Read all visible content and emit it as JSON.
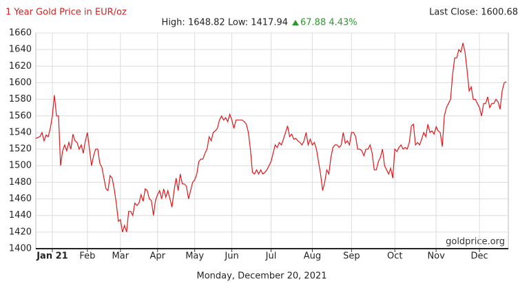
{
  "chart_data": {
    "type": "line",
    "title": "1 Year Gold Price in EUR/oz",
    "last_close": "Last Close: 1600.68",
    "stats": "High: 1648.82 Low: 1417.94",
    "change": "67.88 4.43%",
    "watermark": "goldprice.org",
    "date": "Monday, December 20, 2021",
    "color": "#e0161b",
    "grid": true,
    "xlim": [
      0,
      229
    ],
    "xticks": [
      {
        "value": 8,
        "label": "Jan 21"
      },
      {
        "value": 25,
        "label": "Feb"
      },
      {
        "value": 41,
        "label": "Mar"
      },
      {
        "value": 59,
        "label": "Apr"
      },
      {
        "value": 77,
        "label": "May"
      },
      {
        "value": 95,
        "label": "Jun"
      },
      {
        "value": 114,
        "label": "Jul"
      },
      {
        "value": 134,
        "label": "Aug"
      },
      {
        "value": 153,
        "label": "Sep"
      },
      {
        "value": 174,
        "label": "Oct"
      },
      {
        "value": 194,
        "label": "Nov"
      },
      {
        "value": 215,
        "label": "Dec"
      }
    ],
    "ylim": [
      1400,
      1660
    ],
    "yticks": [
      1400,
      1420,
      1440,
      1460,
      1480,
      1500,
      1520,
      1540,
      1560,
      1580,
      1600,
      1620,
      1640,
      1660
    ],
    "values": [
      1533,
      1534,
      1535,
      1540,
      1530,
      1537,
      1535,
      1545,
      1560,
      1585,
      1560,
      1560,
      1500,
      1518,
      1525,
      1518,
      1528,
      1520,
      1538,
      1530,
      1528,
      1520,
      1525,
      1515,
      1530,
      1540,
      1520,
      1500,
      1512,
      1520,
      1520,
      1503,
      1498,
      1485,
      1472,
      1470,
      1488,
      1485,
      1472,
      1455,
      1433,
      1435,
      1420,
      1428,
      1420,
      1445,
      1445,
      1440,
      1455,
      1452,
      1455,
      1465,
      1457,
      1472,
      1470,
      1460,
      1458,
      1440,
      1458,
      1465,
      1470,
      1460,
      1472,
      1462,
      1470,
      1460,
      1450,
      1470,
      1485,
      1470,
      1490,
      1478,
      1478,
      1475,
      1460,
      1470,
      1480,
      1483,
      1490,
      1505,
      1508,
      1508,
      1515,
      1520,
      1535,
      1530,
      1540,
      1542,
      1545,
      1555,
      1560,
      1555,
      1558,
      1553,
      1562,
      1555,
      1545,
      1555,
      1555,
      1555,
      1555,
      1553,
      1550,
      1540,
      1520,
      1492,
      1490,
      1495,
      1490,
      1495,
      1490,
      1492,
      1495,
      1500,
      1505,
      1515,
      1525,
      1522,
      1528,
      1525,
      1532,
      1540,
      1548,
      1535,
      1538,
      1532,
      1533,
      1530,
      1528,
      1525,
      1530,
      1540,
      1525,
      1532,
      1525,
      1528,
      1520,
      1505,
      1490,
      1470,
      1480,
      1495,
      1490,
      1510,
      1522,
      1525,
      1525,
      1522,
      1525,
      1540,
      1527,
      1530,
      1525,
      1540,
      1540,
      1535,
      1520,
      1520,
      1518,
      1512,
      1520,
      1520,
      1525,
      1515,
      1495,
      1495,
      1505,
      1510,
      1520,
      1500,
      1495,
      1490,
      1497,
      1485,
      1520,
      1517,
      1522,
      1525,
      1520,
      1522,
      1520,
      1528,
      1548,
      1550,
      1525,
      1528,
      1525,
      1532,
      1540,
      1535,
      1550,
      1540,
      1542,
      1538,
      1547,
      1542,
      1540,
      1523,
      1560,
      1570,
      1575,
      1580,
      1610,
      1630,
      1630,
      1640,
      1637,
      1648,
      1637,
      1615,
      1590,
      1595,
      1580,
      1580,
      1575,
      1570,
      1560,
      1575,
      1575,
      1583,
      1570,
      1575,
      1575,
      1580,
      1577,
      1568,
      1590,
      1600,
      1601
    ]
  }
}
